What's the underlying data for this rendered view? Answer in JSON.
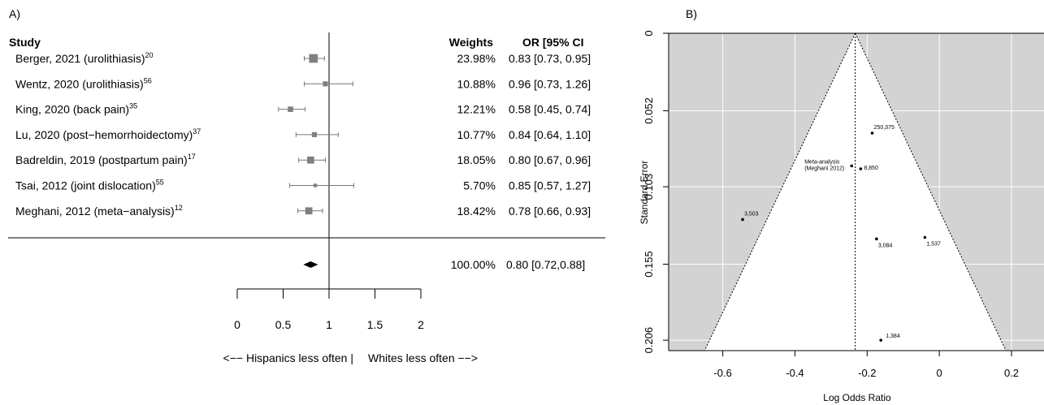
{
  "chart_data": [
    {
      "type": "forest",
      "panel_label": "A)",
      "columns": {
        "study": "Study",
        "weights": "Weights",
        "or_ci": "OR [95% CI"
      },
      "studies": [
        {
          "name": "Berger, 2021 (urolithiasis)",
          "ref": "20",
          "weight": "23.98%",
          "or_text": "0.83 [0.73, 0.95]",
          "or": 0.83,
          "lo": 0.73,
          "hi": 0.95,
          "weight_value": 23.98
        },
        {
          "name": "Wentz, 2020 (urolithiasis)",
          "ref": "56",
          "weight": "10.88%",
          "or_text": "0.96 [0.73, 1.26]",
          "or": 0.96,
          "lo": 0.73,
          "hi": 1.26,
          "weight_value": 10.88
        },
        {
          "name": "King, 2020 (back pain)",
          "ref": "35",
          "weight": "12.21%",
          "or_text": "0.58 [0.45, 0.74]",
          "or": 0.58,
          "lo": 0.45,
          "hi": 0.74,
          "weight_value": 12.21
        },
        {
          "name": "Lu, 2020 (post−hemorrhoidectomy)",
          "ref": "37",
          "weight": "10.77%",
          "or_text": "0.84 [0.64, 1.10]",
          "or": 0.84,
          "lo": 0.64,
          "hi": 1.1,
          "weight_value": 10.77
        },
        {
          "name": "Badreldin, 2019 (postpartum pain)",
          "ref": "17",
          "weight": "18.05%",
          "or_text": "0.80 [0.67, 0.96]",
          "or": 0.8,
          "lo": 0.67,
          "hi": 0.96,
          "weight_value": 18.05
        },
        {
          "name": "Tsai, 2012 (joint dislocation)",
          "ref": "55",
          "weight": "5.70%",
          "or_text": "0.85 [0.57, 1.27]",
          "or": 0.85,
          "lo": 0.57,
          "hi": 1.27,
          "weight_value": 5.7
        },
        {
          "name": "Meghani, 2012 (meta−analysis)",
          "ref": "12",
          "weight": "18.42%",
          "or_text": "0.78 [0.66, 0.93]",
          "or": 0.78,
          "lo": 0.66,
          "hi": 0.93,
          "weight_value": 18.42
        }
      ],
      "summary": {
        "weight": "100.00%",
        "or_text": "0.80 [0.72,0.88]",
        "or": 0.8,
        "lo": 0.72,
        "hi": 0.88
      },
      "xlim": [
        0,
        2
      ],
      "x_ticks": [
        0,
        0.5,
        1,
        1.5,
        2
      ],
      "x_tick_labels": [
        "0",
        "0.5",
        "1",
        "1.5",
        "2"
      ],
      "reference_line": 1,
      "axis_caption_left": "<−− Hispanics less often |",
      "axis_caption_right": "Whites less often −−>"
    },
    {
      "type": "scatter",
      "subtype": "funnel",
      "panel_label": "B)",
      "xlabel": "Log Odds Ratio",
      "ylabel": "Standard Error",
      "xlim": [
        -0.75,
        0.29
      ],
      "ylim": [
        0,
        0.213
      ],
      "y_reversed": true,
      "x_ticks": [
        -0.6,
        -0.4,
        -0.2,
        0,
        0.2
      ],
      "x_tick_labels": [
        "-0.6",
        "-0.4",
        "-0.2",
        "0",
        "0.2"
      ],
      "y_ticks": [
        0,
        0.052,
        0.103,
        0.155,
        0.206
      ],
      "y_tick_labels": [
        "0",
        "0.052",
        "0.103",
        "0.155",
        "0.206"
      ],
      "center_estimate": -0.233,
      "funnel_upper_se": 0.206,
      "background": "#d3d3d3",
      "grid": true,
      "points": [
        {
          "x": -0.186,
          "y": 0.067,
          "label": "250,375"
        },
        {
          "x": -0.218,
          "y": 0.091,
          "label": "8,850"
        },
        {
          "x": -0.243,
          "y": 0.089,
          "label": "Meta-analysis",
          "label2": "(Meghani 2012)"
        },
        {
          "x": -0.545,
          "y": 0.125,
          "label": "3,503"
        },
        {
          "x": -0.174,
          "y": 0.138,
          "label": "3,084"
        },
        {
          "x": -0.04,
          "y": 0.137,
          "label": "1,537"
        },
        {
          "x": -0.162,
          "y": 0.206,
          "label": "1,384"
        }
      ]
    }
  ]
}
